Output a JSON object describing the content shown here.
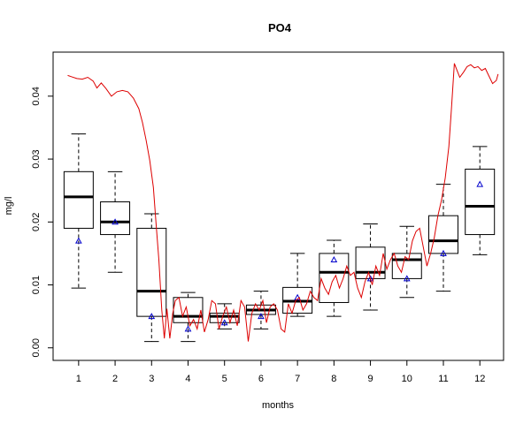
{
  "chart_data": {
    "type": "box",
    "title": "PO4",
    "xlabel": "months",
    "ylabel": "mg/l",
    "categories": [
      "1",
      "2",
      "3",
      "4",
      "5",
      "6",
      "7",
      "8",
      "9",
      "10",
      "11",
      "12"
    ],
    "xlim": [
      0.3,
      12.65
    ],
    "ylim": [
      -0.002,
      0.047
    ],
    "yticks": [
      0.0,
      0.01,
      0.02,
      0.03,
      0.04
    ],
    "ytick_labels": [
      "0.00",
      "0.01",
      "0.02",
      "0.03",
      "0.04"
    ],
    "grid": false,
    "box_color": "#000000",
    "mean_marker_color": "#0000cc",
    "line_color": "#dd0000",
    "boxes": [
      {
        "month": 1,
        "whisker_low": 0.0095,
        "q1": 0.019,
        "median": 0.024,
        "q3": 0.028,
        "whisker_high": 0.034,
        "marker": 0.017
      },
      {
        "month": 2,
        "whisker_low": 0.012,
        "q1": 0.018,
        "median": 0.02,
        "q3": 0.0232,
        "whisker_high": 0.028,
        "marker": 0.02
      },
      {
        "month": 3,
        "whisker_low": 0.001,
        "q1": 0.005,
        "median": 0.009,
        "q3": 0.019,
        "whisker_high": 0.0213,
        "marker": 0.005
      },
      {
        "month": 4,
        "whisker_low": 0.001,
        "q1": 0.004,
        "median": 0.005,
        "q3": 0.008,
        "whisker_high": 0.0088,
        "marker": 0.003
      },
      {
        "month": 5,
        "whisker_low": 0.003,
        "q1": 0.004,
        "median": 0.005,
        "q3": 0.0055,
        "whisker_high": 0.007,
        "marker": 0.004
      },
      {
        "month": 6,
        "whisker_low": 0.003,
        "q1": 0.0053,
        "median": 0.006,
        "q3": 0.0068,
        "whisker_high": 0.009,
        "marker": 0.005
      },
      {
        "month": 7,
        "whisker_low": 0.005,
        "q1": 0.0055,
        "median": 0.0074,
        "q3": 0.0096,
        "whisker_high": 0.015,
        "marker": 0.008
      },
      {
        "month": 8,
        "whisker_low": 0.005,
        "q1": 0.0072,
        "median": 0.012,
        "q3": 0.015,
        "whisker_high": 0.0171,
        "marker": 0.014
      },
      {
        "month": 9,
        "whisker_low": 0.006,
        "q1": 0.011,
        "median": 0.012,
        "q3": 0.016,
        "whisker_high": 0.0197,
        "marker": 0.011
      },
      {
        "month": 10,
        "whisker_low": 0.008,
        "q1": 0.011,
        "median": 0.014,
        "q3": 0.015,
        "whisker_high": 0.0193,
        "marker": 0.011
      },
      {
        "month": 11,
        "whisker_low": 0.009,
        "q1": 0.015,
        "median": 0.017,
        "q3": 0.021,
        "whisker_high": 0.026,
        "marker": 0.015
      },
      {
        "month": 12,
        "whisker_low": 0.0148,
        "q1": 0.018,
        "median": 0.0225,
        "q3": 0.0284,
        "whisker_high": 0.032,
        "marker": 0.026
      }
    ],
    "line": {
      "x": [
        0.7,
        0.8,
        0.95,
        1.1,
        1.25,
        1.4,
        1.5,
        1.62,
        1.75,
        1.9,
        2.05,
        2.2,
        2.35,
        2.5,
        2.65,
        2.75,
        2.85,
        2.95,
        3.05,
        3.12,
        3.2,
        3.28,
        3.35,
        3.42,
        3.5,
        3.58,
        3.65,
        3.75,
        3.85,
        3.95,
        4.05,
        4.15,
        4.25,
        4.35,
        4.45,
        4.55,
        4.65,
        4.75,
        4.85,
        4.95,
        5.05,
        5.15,
        5.25,
        5.35,
        5.45,
        5.55,
        5.65,
        5.75,
        5.85,
        5.95,
        6.05,
        6.15,
        6.25,
        6.35,
        6.45,
        6.55,
        6.65,
        6.75,
        6.85,
        6.95,
        7.05,
        7.15,
        7.25,
        7.35,
        7.45,
        7.55,
        7.65,
        7.75,
        7.85,
        7.95,
        8.05,
        8.15,
        8.25,
        8.35,
        8.45,
        8.55,
        8.65,
        8.75,
        8.85,
        8.95,
        9.05,
        9.15,
        9.25,
        9.35,
        9.45,
        9.55,
        9.65,
        9.75,
        9.85,
        9.95,
        10.05,
        10.15,
        10.25,
        10.35,
        10.45,
        10.55,
        10.65,
        10.75,
        10.85,
        10.95,
        11.05,
        11.15,
        11.22,
        11.3,
        11.38,
        11.45,
        11.55,
        11.65,
        11.75,
        11.85,
        11.95,
        12.05,
        12.15,
        12.25,
        12.35,
        12.45,
        12.5
      ],
      "y": [
        0.0433,
        0.0431,
        0.0428,
        0.0427,
        0.043,
        0.0424,
        0.0413,
        0.0421,
        0.0412,
        0.04,
        0.0407,
        0.0409,
        0.0407,
        0.0397,
        0.038,
        0.0358,
        0.033,
        0.0298,
        0.0255,
        0.02,
        0.014,
        0.006,
        0.0015,
        0.0062,
        0.0015,
        0.0055,
        0.0075,
        0.008,
        0.005,
        0.0065,
        0.0035,
        0.0045,
        0.003,
        0.006,
        0.0025,
        0.0045,
        0.0075,
        0.007,
        0.003,
        0.005,
        0.0065,
        0.004,
        0.006,
        0.0035,
        0.0075,
        0.0065,
        0.001,
        0.0055,
        0.007,
        0.006,
        0.0075,
        0.004,
        0.0065,
        0.007,
        0.006,
        0.003,
        0.0025,
        0.007,
        0.0055,
        0.0075,
        0.008,
        0.006,
        0.007,
        0.009,
        0.008,
        0.0075,
        0.011,
        0.0095,
        0.0085,
        0.0105,
        0.0115,
        0.0095,
        0.011,
        0.013,
        0.0115,
        0.012,
        0.0095,
        0.008,
        0.0105,
        0.012,
        0.01,
        0.013,
        0.0115,
        0.015,
        0.0125,
        0.014,
        0.015,
        0.013,
        0.012,
        0.0145,
        0.014,
        0.017,
        0.0185,
        0.019,
        0.016,
        0.013,
        0.015,
        0.0175,
        0.021,
        0.0235,
        0.027,
        0.032,
        0.038,
        0.0452,
        0.044,
        0.043,
        0.0438,
        0.0447,
        0.045,
        0.0445,
        0.0447,
        0.0441,
        0.0444,
        0.0432,
        0.042,
        0.0425,
        0.0435
      ]
    }
  }
}
